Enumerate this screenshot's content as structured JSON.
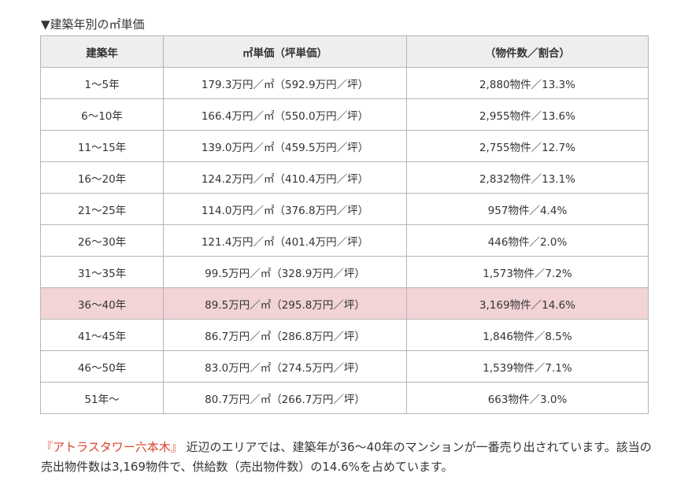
{
  "heading": "▼建築年別の㎡単価",
  "table": {
    "headers": [
      "建築年",
      "㎡単価（坪単価）",
      "（物件数／割合）"
    ],
    "highlight_color": "#f2d3d6",
    "rows": [
      {
        "age": "1～5年",
        "price": "179.3万円／㎡（592.9万円／坪）",
        "count": "2,880物件／13.3%"
      },
      {
        "age": "6～10年",
        "price": "166.4万円／㎡（550.0万円／坪）",
        "count": "2,955物件／13.6%"
      },
      {
        "age": "11～15年",
        "price": "139.0万円／㎡（459.5万円／坪）",
        "count": "2,755物件／12.7%"
      },
      {
        "age": "16～20年",
        "price": "124.2万円／㎡（410.4万円／坪）",
        "count": "2,832物件／13.1%"
      },
      {
        "age": "21～25年",
        "price": "114.0万円／㎡（376.8万円／坪）",
        "count": "957物件／4.4%"
      },
      {
        "age": "26～30年",
        "price": "121.4万円／㎡（401.4万円／坪）",
        "count": "446物件／2.0%"
      },
      {
        "age": "31～35年",
        "price": "99.5万円／㎡（328.9万円／坪）",
        "count": "1,573物件／7.2%"
      },
      {
        "age": "36～40年",
        "price": "89.5万円／㎡（295.8万円／坪）",
        "count": "3,169物件／14.6%"
      },
      {
        "age": "41～45年",
        "price": "86.7万円／㎡（286.8万円／坪）",
        "count": "1,846物件／8.5%"
      },
      {
        "age": "46～50年",
        "price": "83.0万円／㎡（274.5万円／坪）",
        "count": "1,539物件／7.1%"
      },
      {
        "age": "51年～",
        "price": "80.7万円／㎡（266.7万円／坪）",
        "count": "663物件／3.0%"
      }
    ]
  },
  "summary": {
    "link_text": "『アトラスタワー六本木』",
    "link_color": "#d8442c",
    "body": "近辺のエリアでは、建築年が36～40年のマンションが一番売り出されています。該当の売出物件数は3,169物件で、供給数（売出物件数）の14.6%を占めています。"
  }
}
